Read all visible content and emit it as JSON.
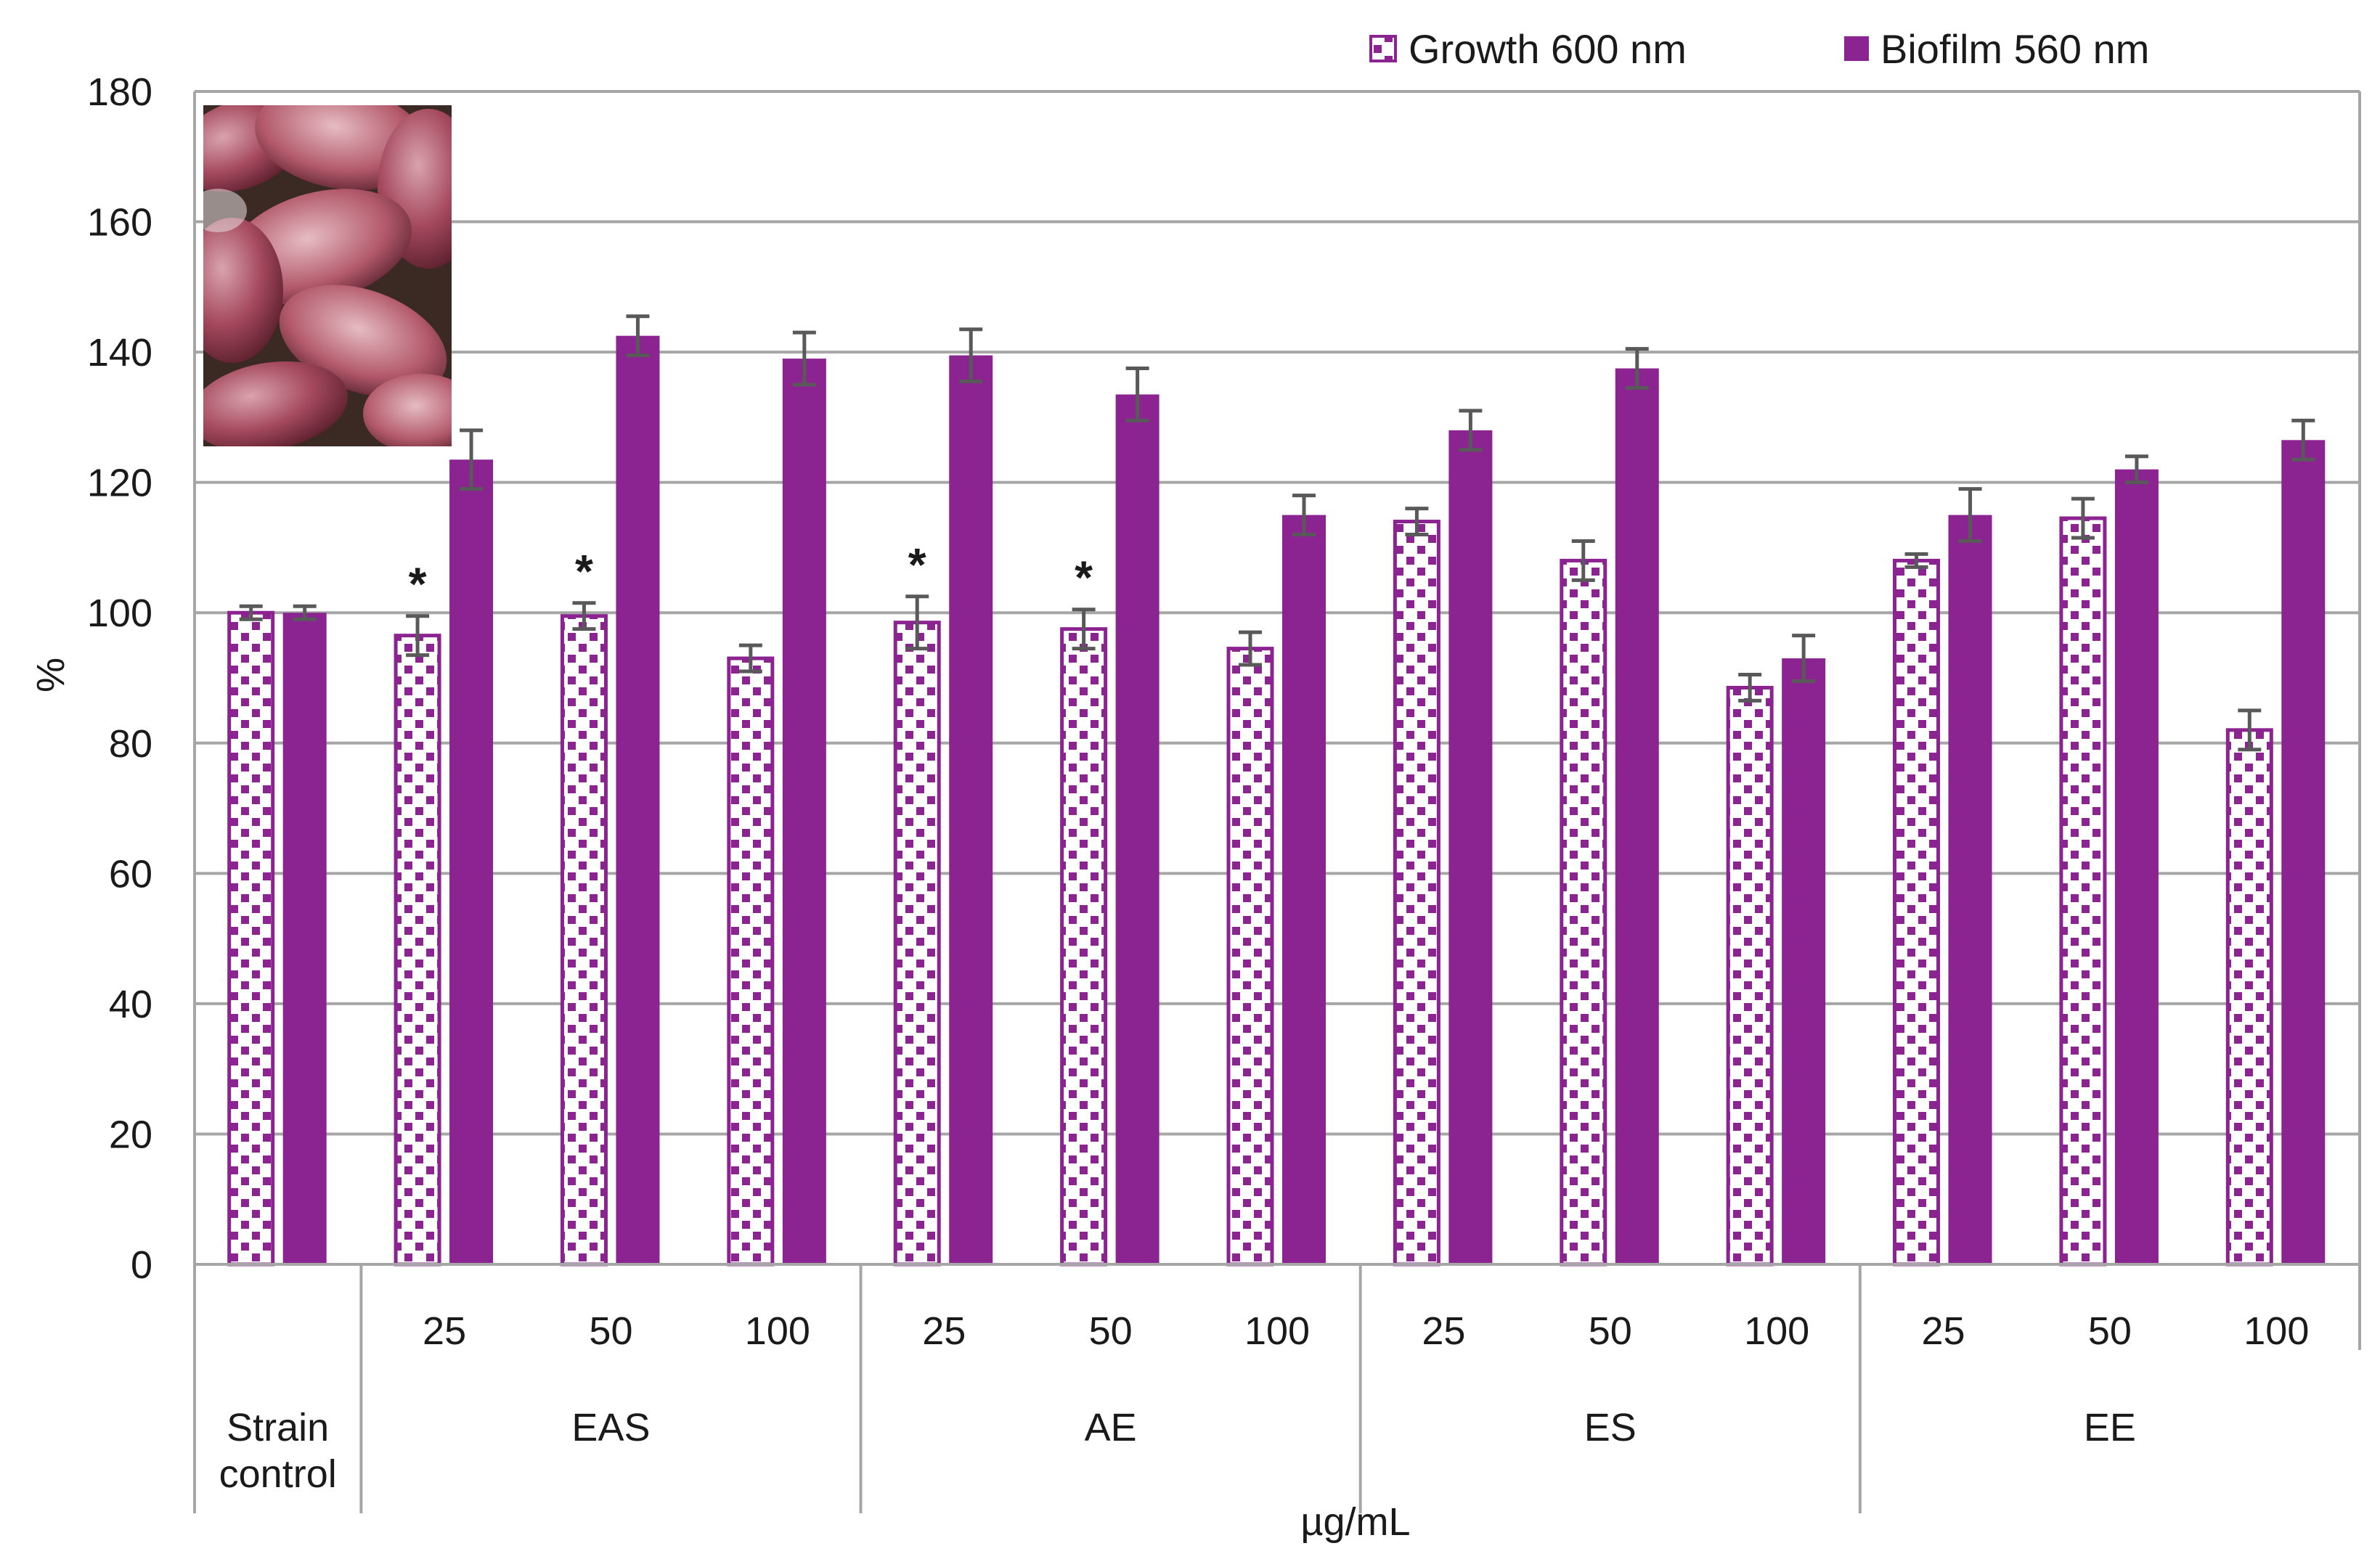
{
  "chart_data": {
    "type": "bar",
    "title": "",
    "ylabel": "%",
    "xlabel": "µg/mL",
    "ylim": [
      0,
      180
    ],
    "yticks": [
      0,
      20,
      40,
      60,
      80,
      100,
      120,
      140,
      160,
      180
    ],
    "grid": "horizontal",
    "legend_position": "top-right",
    "inset_image": "photo of purple-red tubers",
    "colors": {
      "biofilm": "#8B2391",
      "growth_outline": "#8B2391",
      "grid": "#A6A6A6",
      "error_bar": "#595959"
    },
    "categories": [
      {
        "dose": "",
        "group": "Strain control"
      },
      {
        "dose": "25",
        "group": "EAS"
      },
      {
        "dose": "50",
        "group": "EAS"
      },
      {
        "dose": "100",
        "group": "EAS"
      },
      {
        "dose": "25",
        "group": "AE"
      },
      {
        "dose": "50",
        "group": "AE"
      },
      {
        "dose": "100",
        "group": "AE"
      },
      {
        "dose": "25",
        "group": "ES"
      },
      {
        "dose": "50",
        "group": "ES"
      },
      {
        "dose": "100",
        "group": "ES"
      },
      {
        "dose": "25",
        "group": "EE"
      },
      {
        "dose": "50",
        "group": "EE"
      },
      {
        "dose": "100",
        "group": "EE"
      }
    ],
    "groups": [
      {
        "label": "Strain control",
        "lines": [
          "Strain",
          "control"
        ],
        "span": 1
      },
      {
        "label": "EAS",
        "lines": [
          "EAS"
        ],
        "span": 3
      },
      {
        "label": "AE",
        "lines": [
          "AE"
        ],
        "span": 3
      },
      {
        "label": "ES",
        "lines": [
          "ES"
        ],
        "span": 3
      },
      {
        "label": "EE",
        "lines": [
          "EE"
        ],
        "span": 3
      }
    ],
    "series": [
      {
        "name": "Growth 600 nm",
        "pattern": "checkered",
        "values": [
          100,
          96.5,
          99.5,
          93,
          98.5,
          97.5,
          94.5,
          114,
          108,
          88.5,
          108,
          114.5,
          82
        ],
        "errors": [
          1,
          3,
          2,
          2,
          4,
          3,
          2.5,
          2,
          3,
          2,
          1,
          3,
          3
        ]
      },
      {
        "name": "Biofilm 560 nm",
        "pattern": "solid",
        "values": [
          100,
          123.5,
          142.5,
          139,
          139.5,
          133.5,
          115,
          128,
          137.5,
          93,
          115,
          122,
          126.5
        ],
        "errors": [
          1,
          4.5,
          3,
          4,
          4,
          4,
          3,
          3,
          3,
          3.5,
          4,
          2,
          3
        ]
      }
    ],
    "significance_markers": [
      {
        "category_index": 1,
        "series": "Growth 600 nm",
        "mark": "*"
      },
      {
        "category_index": 2,
        "series": "Growth 600 nm",
        "mark": "*"
      },
      {
        "category_index": 4,
        "series": "Growth 600 nm",
        "mark": "*"
      },
      {
        "category_index": 5,
        "series": "Growth 600 nm",
        "mark": "*"
      }
    ]
  }
}
